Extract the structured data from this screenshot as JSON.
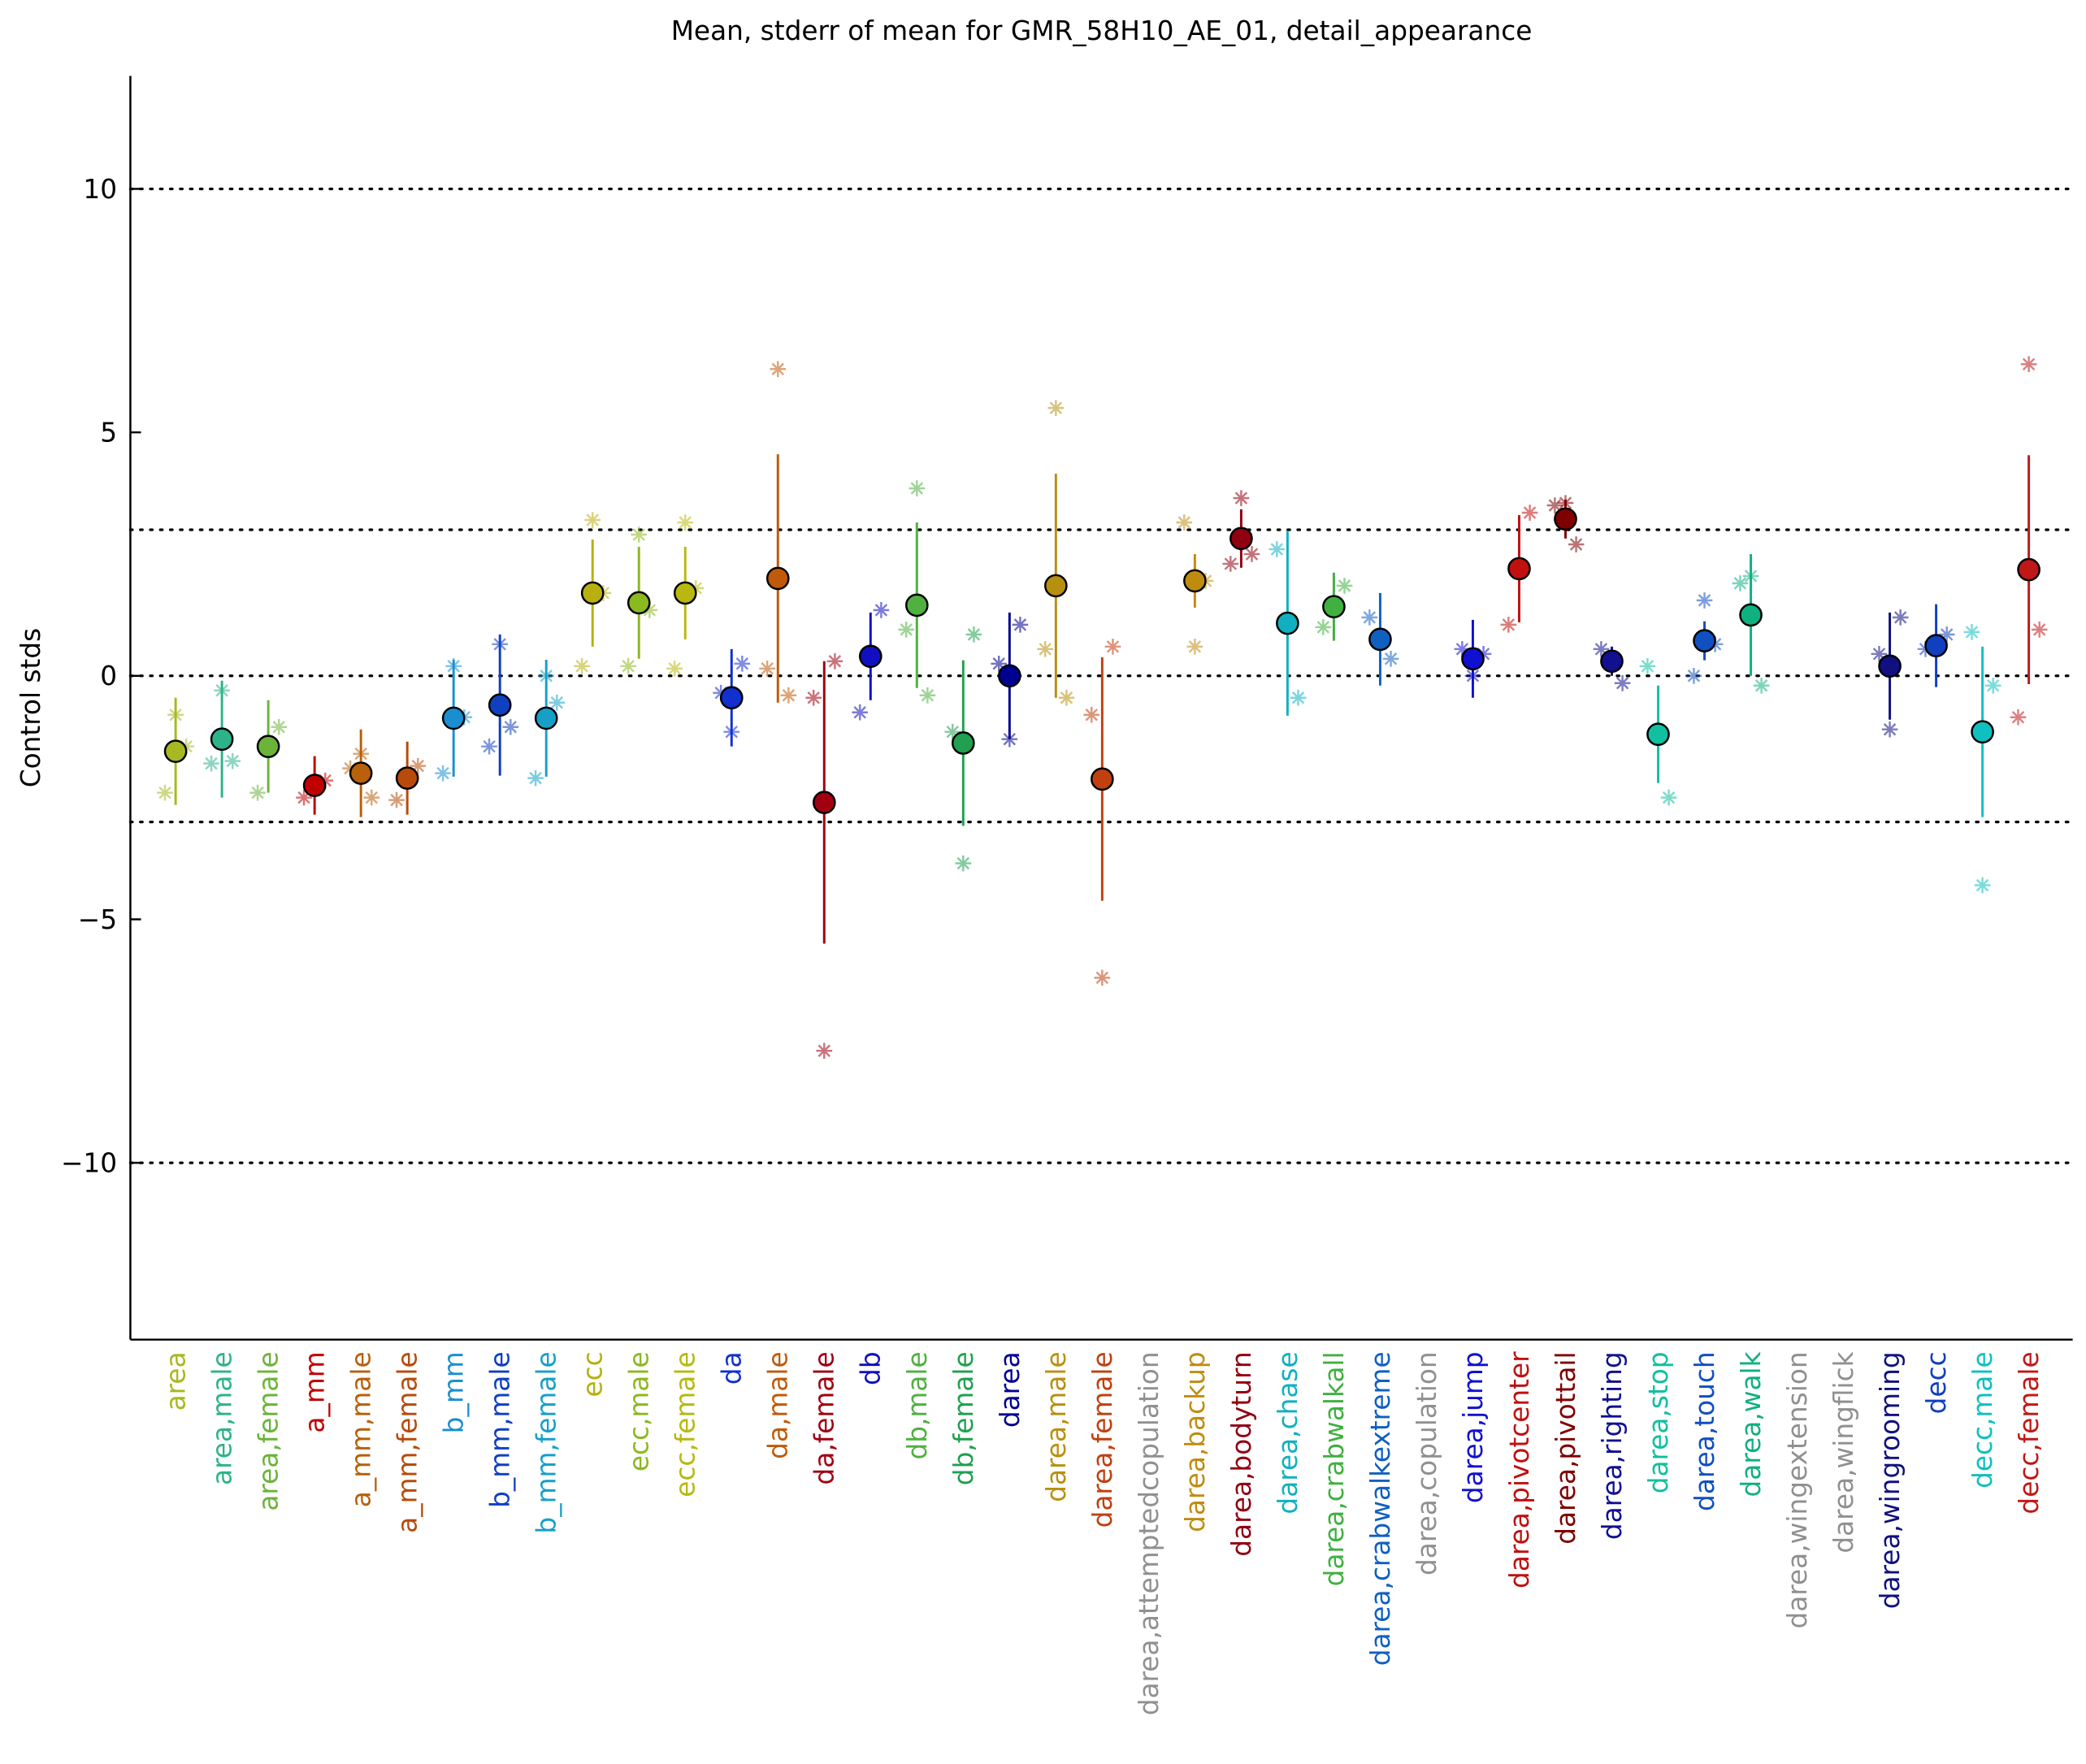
{
  "chart_data": {
    "type": "errorbar",
    "title": "Mean, stderr of mean for GMR_58H10_AE_01, detail_appearance",
    "ylabel": "Control stds",
    "ylim": [
      -13.63,
      12.32
    ],
    "yticks": [
      {
        "value": -10,
        "label": "−10"
      },
      {
        "value": -5,
        "label": "−5"
      },
      0,
      5,
      10
    ],
    "reference_lines": [
      -10,
      -3,
      0,
      3,
      10
    ],
    "categories": [
      "area",
      "area,male",
      "area,female",
      "a_mm",
      "a_mm,male",
      "a_mm,female",
      "b_mm",
      "b_mm,male",
      "b_mm,female",
      "ecc",
      "ecc,male",
      "ecc,female",
      "da",
      "da,male",
      "da,female",
      "db",
      "db,male",
      "db,female",
      "darea",
      "darea,male",
      "darea,female",
      "darea,attemptedcopulation",
      "darea,backup",
      "darea,bodyturn",
      "darea,chase",
      "darea,crabwalkall",
      "darea,crabwalkextreme",
      "darea,copulation",
      "darea,jump",
      "darea,pivotcenter",
      "darea,pivottail",
      "darea,righting",
      "darea,stop",
      "darea,touch",
      "darea,walk",
      "darea,wingextension",
      "darea,wingflick",
      "darea,wingrooming",
      "decc",
      "decc,male",
      "decc,female"
    ],
    "colors": [
      "#a8b820",
      "#2db38a",
      "#6cb33a",
      "#c00000",
      "#b8600a",
      "#b84a0a",
      "#1a8fcf",
      "#1040c0",
      "#16a0c8",
      "#b8b010",
      "#8cb820",
      "#b8b810",
      "#1030d0",
      "#c05a0a",
      "#a00010",
      "#1010c0",
      "#50b040",
      "#20a050",
      "#000090",
      "#b89010",
      "#c04010",
      "#909090",
      "#c08c10",
      "#900010",
      "#10b0c0",
      "#40b040",
      "#1060c0",
      "#909090",
      "#1010d0",
      "#c01010",
      "#800000",
      "#101090",
      "#10c0a0",
      "#1050c0",
      "#10b080",
      "#909090",
      "#909090",
      "#101080",
      "#1040c0",
      "#10c0c0",
      "#c01818"
    ],
    "means": [
      -1.55,
      -1.3,
      -1.45,
      -2.25,
      -2.0,
      -2.1,
      -0.87,
      -0.6,
      -0.87,
      1.7,
      1.5,
      1.7,
      -0.45,
      2.0,
      -2.6,
      0.4,
      1.45,
      -1.38,
      0.0,
      1.85,
      -2.12,
      null,
      1.95,
      2.82,
      1.08,
      1.42,
      0.75,
      null,
      0.35,
      2.2,
      3.22,
      0.3,
      -1.2,
      0.72,
      1.25,
      null,
      null,
      0.2,
      0.62,
      -1.15,
      2.18
    ],
    "stderr": [
      1.1,
      1.2,
      0.95,
      0.6,
      0.9,
      0.75,
      1.2,
      1.45,
      1.2,
      1.1,
      1.15,
      0.95,
      1.0,
      2.55,
      2.9,
      0.9,
      1.7,
      1.7,
      1.3,
      2.3,
      2.5,
      null,
      0.55,
      0.6,
      1.9,
      0.7,
      0.95,
      null,
      0.8,
      1.1,
      0.4,
      0.3,
      1.0,
      0.4,
      1.25,
      null,
      null,
      1.1,
      0.85,
      1.75,
      2.35
    ],
    "points": [
      [
        -2.4,
        -0.8,
        -1.45
      ],
      [
        -1.8,
        -0.3,
        -1.75
      ],
      [
        -2.4,
        -1.05
      ],
      [
        -2.5,
        -2.15
      ],
      [
        -1.9,
        -1.6,
        -2.5
      ],
      [
        -2.55,
        -1.85
      ],
      [
        -2.0,
        0.2,
        -0.85
      ],
      [
        -1.45,
        0.65,
        -1.05
      ],
      [
        -2.1,
        0.0,
        -0.55
      ],
      [
        0.2,
        3.2,
        1.7
      ],
      [
        0.2,
        2.9,
        1.35
      ],
      [
        0.15,
        3.15,
        1.8
      ],
      [
        -0.35,
        -1.15,
        0.25
      ],
      [
        0.15,
        6.3,
        -0.4
      ],
      [
        -0.45,
        -7.7,
        0.3
      ],
      [
        -0.75,
        1.35
      ],
      [
        0.95,
        3.85,
        -0.4
      ],
      [
        -1.15,
        -3.85,
        0.85
      ],
      [
        0.25,
        -1.3,
        1.05
      ],
      [
        0.55,
        5.5,
        -0.45
      ],
      [
        -0.8,
        -6.2,
        0.6
      ],
      null,
      [
        3.15,
        0.6,
        1.95
      ],
      [
        2.3,
        3.65,
        2.5
      ],
      [
        2.6,
        -0.45
      ],
      [
        1.0,
        1.85
      ],
      [
        1.2,
        0.35
      ],
      null,
      [
        0.55,
        0.0,
        0.45
      ],
      [
        1.05,
        3.35
      ],
      [
        3.5,
        3.55,
        2.7
      ],
      [
        0.55,
        -0.15
      ],
      [
        0.2,
        -2.5
      ],
      [
        0.0,
        1.55,
        0.65
      ],
      [
        1.9,
        2.05,
        -0.2
      ],
      null,
      null,
      [
        0.45,
        -1.1,
        1.2
      ],
      [
        0.55,
        0.85
      ],
      [
        0.9,
        -4.3,
        -0.2
      ],
      [
        -0.85,
        6.4,
        0.95
      ]
    ]
  }
}
